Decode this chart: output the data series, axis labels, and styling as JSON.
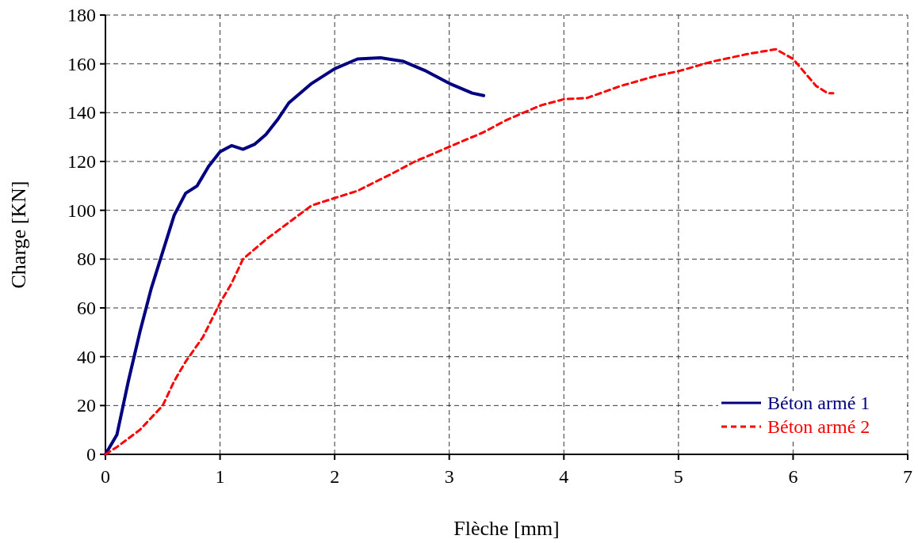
{
  "chart_data": {
    "type": "line",
    "xlabel": "Flèche [mm]",
    "ylabel": "Charge [KN]",
    "xlim": [
      0,
      7
    ],
    "xticks": [
      0,
      1,
      2,
      3,
      4,
      5,
      6,
      7
    ],
    "ylim": [
      0,
      180
    ],
    "yticks": [
      0,
      20,
      40,
      60,
      80,
      100,
      120,
      140,
      160,
      180
    ],
    "grid": true,
    "legend": "bottom right",
    "series": [
      {
        "name": "Béton armé 1",
        "color": "#000080",
        "line_style": "solid",
        "x": [
          0,
          0.1,
          0.2,
          0.3,
          0.4,
          0.5,
          0.6,
          0.7,
          0.8,
          0.9,
          1.0,
          1.1,
          1.2,
          1.3,
          1.4,
          1.5,
          1.6,
          1.8,
          2.0,
          2.2,
          2.4,
          2.6,
          2.8,
          3.0,
          3.2,
          3.3
        ],
        "values": [
          0,
          8,
          30,
          50,
          68,
          83,
          98,
          107,
          110,
          118,
          124,
          126.5,
          125,
          127,
          131,
          137,
          144,
          152,
          158,
          162,
          162.5,
          161,
          157,
          152,
          148,
          147
        ]
      },
      {
        "name": "Béton armé 2",
        "color": "#ff0000",
        "line_style": "dashed",
        "x": [
          0,
          0.1,
          0.3,
          0.5,
          0.6,
          0.7,
          0.85,
          1.0,
          1.1,
          1.2,
          1.4,
          1.6,
          1.8,
          2.0,
          2.2,
          2.5,
          2.7,
          3.0,
          3.3,
          3.5,
          3.8,
          4.0,
          4.2,
          4.5,
          4.8,
          5.0,
          5.3,
          5.6,
          5.85,
          6.0,
          6.2,
          6.3,
          6.35
        ],
        "values": [
          0,
          3,
          10,
          20,
          30,
          38,
          48,
          62,
          70,
          80,
          88,
          95,
          102,
          105,
          108,
          115,
          120,
          126,
          132,
          137,
          143,
          145.5,
          146,
          151,
          155,
          157,
          161,
          164,
          166,
          162,
          151,
          148,
          148
        ]
      }
    ]
  }
}
